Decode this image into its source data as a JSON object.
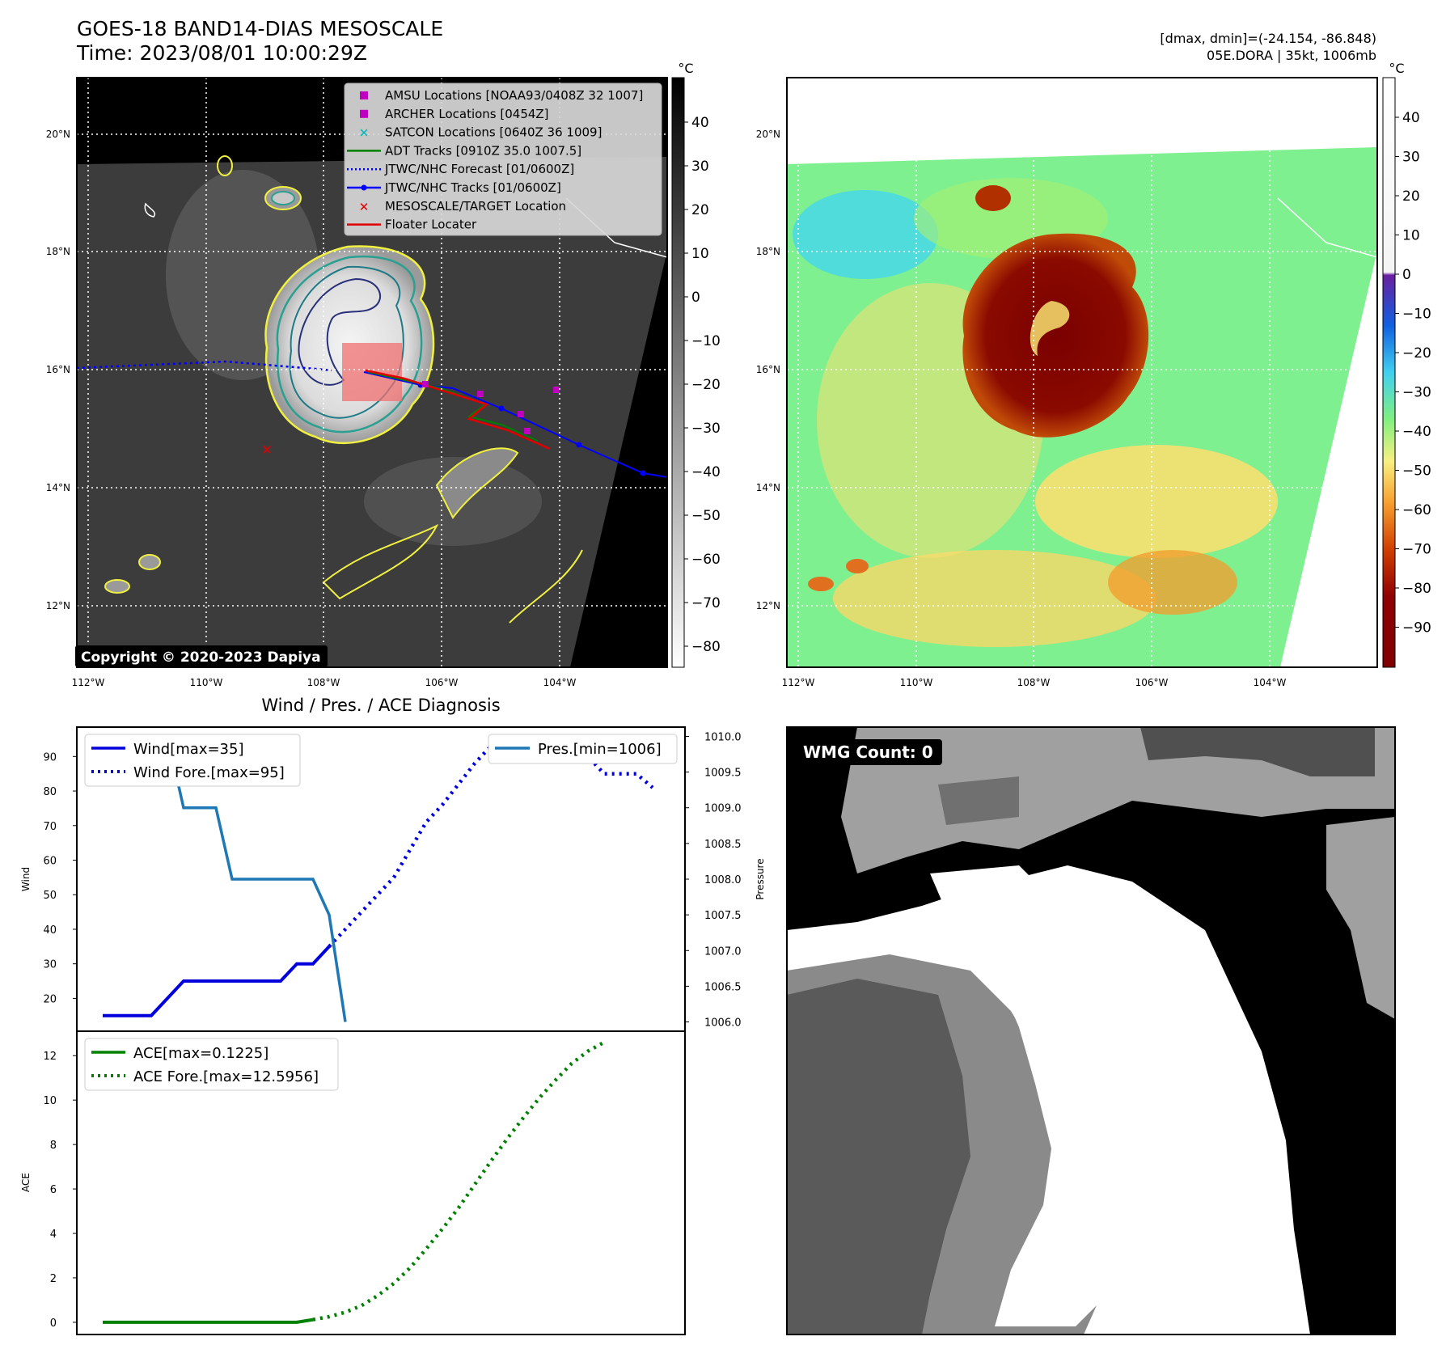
{
  "header": {
    "title": "GOES-18 BAND14-DIAS MESOSCALE",
    "time": "Time: 2023/08/01 10:00:29Z",
    "dmax_dmin": "[dmax, dmin]=(-24.154, -86.848)",
    "storm": "05E.DORA | 35kt, 1006mb"
  },
  "copyright": "Copyright © 2020-2023 Dapiya",
  "map": {
    "lon_ticks": [
      "112°W",
      "110°W",
      "108°W",
      "106°W",
      "104°W"
    ],
    "lat_ticks": [
      "20°N",
      "18°N",
      "16°N",
      "14°N",
      "12°N"
    ],
    "legend": [
      {
        "label": "AMSU Locations [NOAA93/0408Z 32 1007]",
        "marker": "square",
        "color": "#c000c0"
      },
      {
        "label": "ARCHER Locations [0454Z]",
        "marker": "square",
        "color": "#c000c0"
      },
      {
        "label": "SATCON Locations [0640Z 36 1009]",
        "marker": "x",
        "color": "#00b8b8"
      },
      {
        "label": "ADT Tracks [0910Z 35.0 1007.5]",
        "marker": "line",
        "color": "#007f00"
      },
      {
        "label": "JTWC/NHC Forecast [01/0600Z]",
        "marker": "dotted",
        "color": "#0000ff"
      },
      {
        "label": "JTWC/NHC Tracks [01/0600Z]",
        "marker": "line-dot",
        "color": "#0000ff"
      },
      {
        "label": "MESOSCALE/TARGET Location",
        "marker": "x",
        "color": "#e00000"
      },
      {
        "label": "Floater Locater",
        "marker": "line",
        "color": "#e00000"
      }
    ]
  },
  "colorbar_gray": {
    "unit": "°C",
    "ticks": [
      "40",
      "30",
      "20",
      "10",
      "0",
      "−10",
      "−20",
      "−30",
      "−40",
      "−50",
      "−60",
      "−70",
      "−80"
    ]
  },
  "colorbar_color": {
    "unit": "°C",
    "ticks": [
      "40",
      "30",
      "20",
      "10",
      "0",
      "−10",
      "−20",
      "−30",
      "−40",
      "−50",
      "−60",
      "−70",
      "−80",
      "−90"
    ]
  },
  "wmg": {
    "label": "WMG Count: 0"
  },
  "chart_data": [
    {
      "type": "line",
      "title": "Wind / Pres. / ACE Diagnosis",
      "ylabel": "Wind",
      "y2label": "Pressure",
      "ylim": [
        10.5,
        98.5
      ],
      "y2lim": [
        1005.87,
        1010.13
      ],
      "yticks": [
        "20",
        "30",
        "40",
        "50",
        "60",
        "70",
        "80",
        "90"
      ],
      "y2ticks": [
        "1006.0",
        "1006.5",
        "1007.0",
        "1007.5",
        "1008.0",
        "1008.5",
        "1009.0",
        "1009.5",
        "1010.0"
      ],
      "series": [
        {
          "name": "Wind[max=35]",
          "color": "#0000dd",
          "style": "solid",
          "values": [
            15,
            15,
            15,
            15,
            20,
            25,
            25,
            25,
            25,
            25,
            25,
            25,
            30,
            30,
            35
          ]
        },
        {
          "name": "Wind Fore.[max=95]",
          "color": "#0000dd",
          "style": "dotted",
          "values": [
            35,
            40,
            45,
            50,
            55,
            63,
            71,
            76,
            82,
            88,
            93,
            95,
            95,
            95,
            95,
            93,
            90,
            85,
            85,
            85,
            81
          ]
        },
        {
          "name": "Pres.[min=1006]",
          "color": "#1f77b4",
          "style": "solid",
          "values": [
            1010,
            1010,
            1010,
            1010,
            1010,
            1009,
            1009,
            1009,
            1008,
            1008,
            1008,
            1008,
            1008,
            1008,
            1007.5,
            1006
          ]
        }
      ]
    },
    {
      "type": "line",
      "ylabel": "ACE",
      "ylim": [
        -0.55,
        13.1
      ],
      "yticks": [
        "0",
        "2",
        "4",
        "6",
        "8",
        "10",
        "12"
      ],
      "series": [
        {
          "name": "ACE[max=0.1225]",
          "color": "#008000",
          "style": "solid",
          "values": [
            0,
            0,
            0,
            0,
            0,
            0,
            0,
            0,
            0,
            0,
            0,
            0,
            0,
            0.12
          ]
        },
        {
          "name": "ACE Fore.[max=12.5956]",
          "color": "#008000",
          "style": "dotted",
          "values": [
            0.12,
            0.25,
            0.45,
            0.75,
            1.2,
            1.75,
            2.45,
            3.3,
            4.2,
            5.15,
            6.2,
            7.25,
            8.25,
            9.2,
            10.1,
            10.9,
            11.65,
            12.2,
            12.6
          ]
        }
      ]
    }
  ]
}
